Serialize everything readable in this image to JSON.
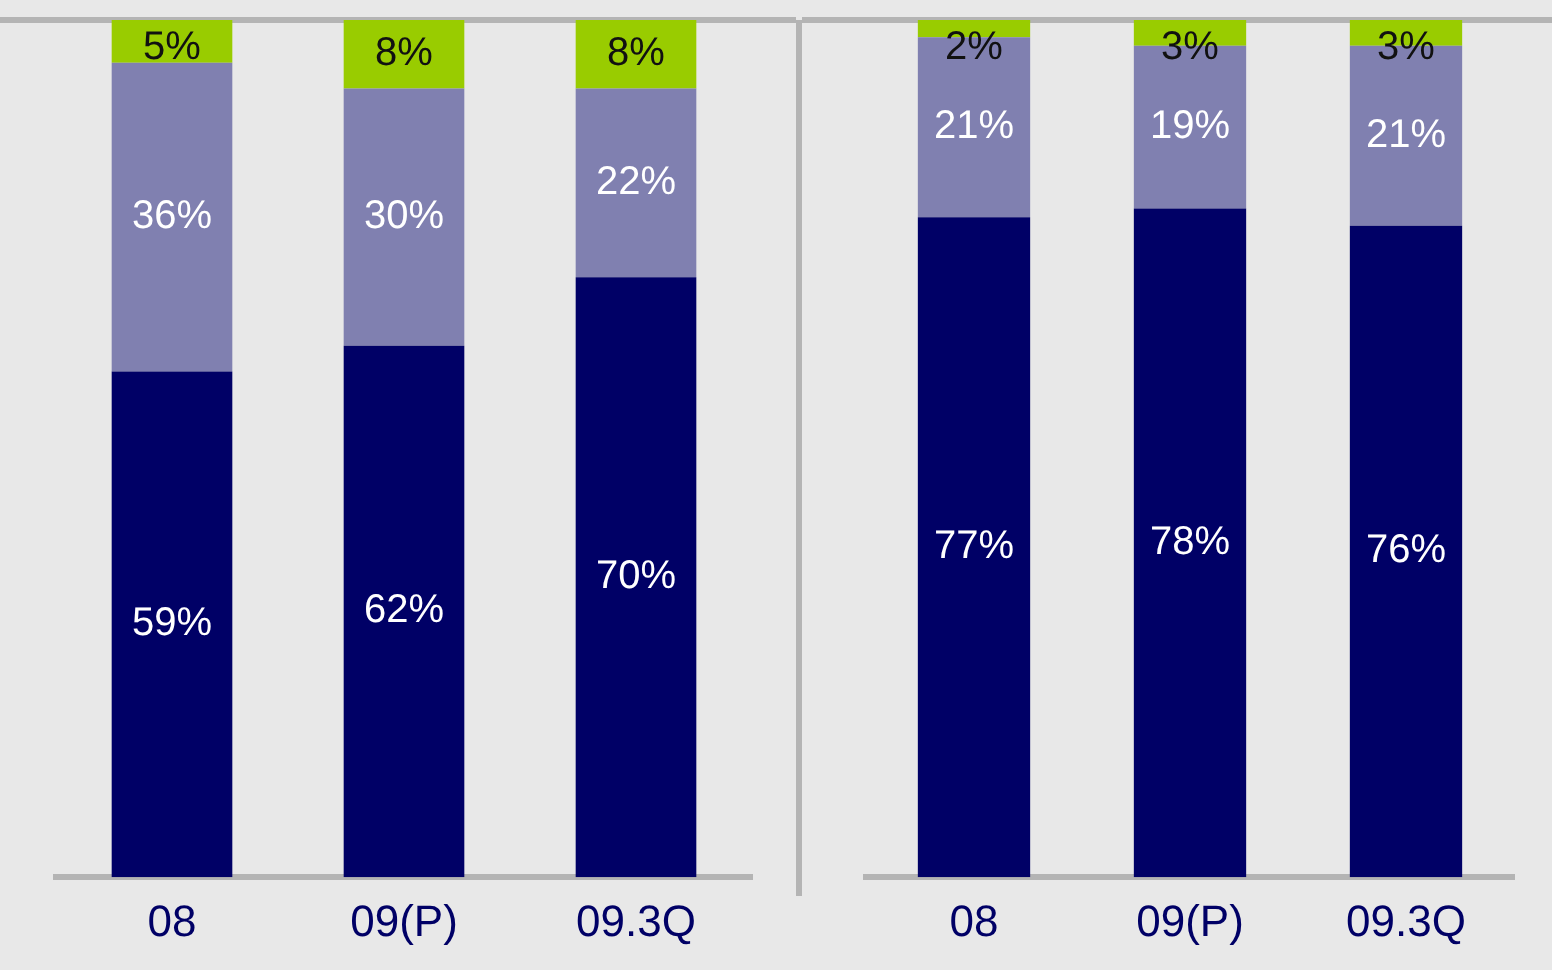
{
  "chart_data": [
    {
      "type": "bar",
      "stacked": true,
      "categories": [
        "08",
        "09(P)",
        "09.3Q"
      ],
      "ylim": [
        0,
        100
      ],
      "tick_labels": "x",
      "grid": false,
      "series": [
        {
          "color": "#000066",
          "values": [
            59,
            62,
            70
          ],
          "value_labels": [
            "59%",
            "62%",
            "70%"
          ]
        },
        {
          "color": "#8080b0",
          "values": [
            36,
            30,
            22
          ],
          "value_labels": [
            "36%",
            "30%",
            "22%"
          ]
        },
        {
          "color": "#99cc00",
          "values": [
            5,
            8,
            8
          ],
          "value_labels": [
            "5%",
            "8%",
            "8%"
          ]
        }
      ]
    },
    {
      "type": "bar",
      "stacked": true,
      "categories": [
        "08",
        "09(P)",
        "09.3Q"
      ],
      "ylim": [
        0,
        100
      ],
      "tick_labels": "x",
      "grid": false,
      "series": [
        {
          "color": "#000066",
          "values": [
            77,
            78,
            76
          ],
          "value_labels": [
            "77%",
            "78%",
            "76%"
          ]
        },
        {
          "color": "#8080b0",
          "values": [
            21,
            19,
            21
          ],
          "value_labels": [
            "21%",
            "19%",
            "21%"
          ]
        },
        {
          "color": "#99cc00",
          "values": [
            2,
            3,
            3
          ],
          "value_labels": [
            "2%",
            "3%",
            "3%"
          ]
        }
      ]
    }
  ]
}
